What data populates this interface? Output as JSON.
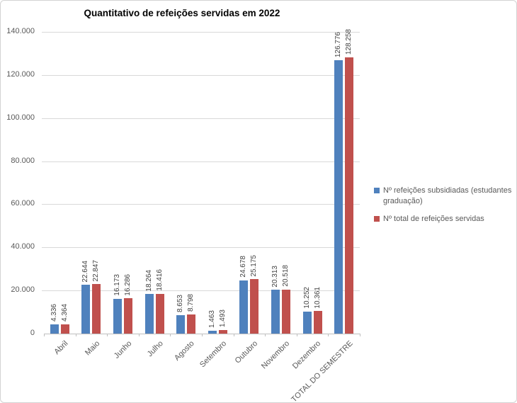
{
  "chart_data": {
    "type": "bar",
    "title": "Quantitativo de refeições servidas em 2022",
    "categories": [
      "Abril",
      "Maio",
      "Junho",
      "Julho",
      "Agosto",
      "Setembro",
      "Outubro",
      "Novembro",
      "Dezembro",
      "TOTAL DO SEMESTRE"
    ],
    "series": [
      {
        "name": "Nº refeições subsidiadas (estudantes graduação)",
        "color": "#4F81BD",
        "values": [
          4336,
          22644,
          16173,
          18264,
          8653,
          1463,
          24678,
          20313,
          10252,
          126776
        ],
        "labels": [
          "4.336",
          "22.644",
          "16.173",
          "18.264",
          "8.653",
          "1.463",
          "24.678",
          "20.313",
          "10.252",
          "126.776"
        ]
      },
      {
        "name": "Nº total de refeições servidas",
        "color": "#C0504D",
        "values": [
          4364,
          22847,
          16286,
          18416,
          8798,
          1493,
          25175,
          20518,
          10361,
          128258
        ],
        "labels": [
          "4.364",
          "22.847",
          "16.286",
          "18.416",
          "8.798",
          "1.493",
          "25.175",
          "20.518",
          "10.361",
          "128.258"
        ]
      }
    ],
    "y_axis": {
      "min": 0,
      "max": 140000,
      "step": 20000,
      "tick_labels": [
        "0",
        "20.000",
        "40.000",
        "60.000",
        "80.000",
        "100.000",
        "120.000",
        "140.000"
      ]
    },
    "grid": true,
    "legend_position": "right",
    "x_label_rotation_deg": -45,
    "data_label_rotation_deg": -90
  }
}
